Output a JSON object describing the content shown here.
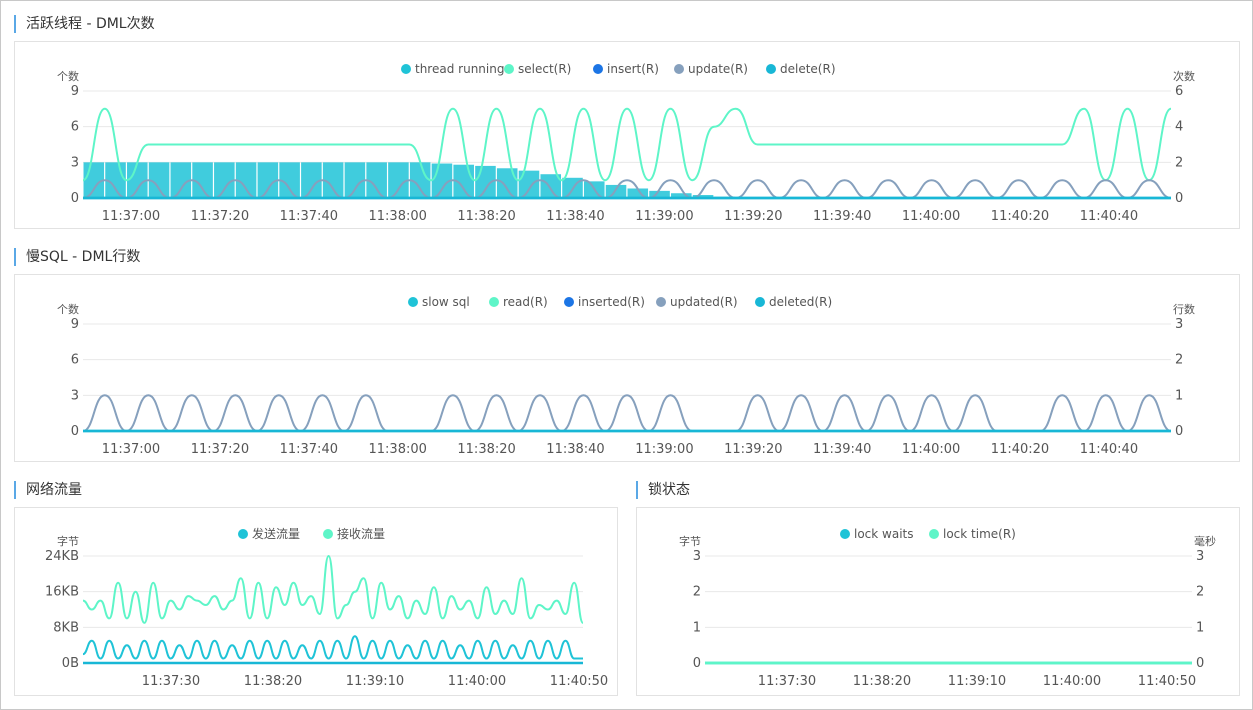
{
  "sections": {
    "active_threads": "活跃线程 - DML次数",
    "slow_sql": "慢SQL - DML行数",
    "network": "网络流量",
    "lock": "锁状态"
  },
  "colors": {
    "cyan": "#1fc3d7",
    "mint": "#5ef5c8",
    "blue": "#1c75e5",
    "slate": "#86a0bd",
    "teal": "#18b7d6",
    "grid": "#e8e8e8",
    "axis": "#18b7d6",
    "section_marker": "#5aa8e6"
  },
  "chart_data": [
    {
      "id": "active_threads",
      "type": "bar",
      "title": "",
      "y_left_label": "个数",
      "y_right_label": "次数",
      "y_left_ticks": [
        "9",
        "6",
        "3",
        "0"
      ],
      "y_right_ticks": [
        "6",
        "4",
        "2",
        "0"
      ],
      "ylim_left": [
        0,
        9
      ],
      "ylim_right": [
        0,
        6
      ],
      "x_ticks": [
        "11:37:00",
        "11:37:20",
        "11:37:40",
        "11:38:00",
        "11:38:20",
        "11:38:40",
        "11:39:00",
        "11:39:20",
        "11:39:40",
        "11:40:00",
        "11:40:20",
        "11:40:40"
      ],
      "legend_placement": "top-center",
      "legend": [
        {
          "name": "thread running",
          "color": "#1fc3d7"
        },
        {
          "name": "select(R)",
          "color": "#5ef5c8"
        },
        {
          "name": "insert(R)",
          "color": "#1c75e5"
        },
        {
          "name": "update(R)",
          "color": "#86a0bd"
        },
        {
          "name": "delete(R)",
          "color": "#18b7d6"
        }
      ],
      "series": [
        {
          "name": "thread running",
          "type": "bar",
          "axis": "left",
          "values": [
            3,
            3,
            3,
            3,
            3,
            3,
            3,
            3,
            3,
            3,
            3,
            3,
            3,
            3,
            3,
            3,
            2.9,
            2.8,
            2.7,
            2.5,
            2.3,
            2.0,
            1.7,
            1.4,
            1.1,
            0.8,
            0.6,
            0.4,
            0.25,
            0.1,
            0,
            0,
            0,
            0,
            0,
            0,
            0,
            0,
            0,
            0,
            0,
            0,
            0,
            0,
            0,
            0,
            0,
            0,
            0,
            0
          ]
        },
        {
          "name": "select(R)",
          "type": "line",
          "axis": "right",
          "x": [
            0,
            1,
            2,
            3,
            4,
            5,
            6,
            7,
            8,
            9,
            10,
            11,
            12,
            13,
            14,
            15,
            16,
            17,
            18,
            19,
            20,
            21,
            22,
            23,
            24,
            25,
            26,
            27,
            28,
            29,
            30,
            31,
            32,
            33,
            34,
            35,
            36,
            37,
            38,
            39,
            40,
            41,
            42,
            43,
            44,
            45,
            46,
            47,
            48,
            49,
            50
          ],
          "values": [
            1,
            5,
            1,
            3,
            3,
            3,
            3,
            3,
            3,
            3,
            3,
            3,
            3,
            3,
            3,
            3,
            1,
            5,
            1,
            5,
            1,
            5,
            1,
            5,
            1,
            5,
            1,
            5,
            1,
            4,
            5,
            3,
            3,
            3,
            3,
            3,
            3,
            3,
            3,
            3,
            3,
            3,
            3,
            3,
            3,
            3,
            5,
            1,
            5,
            1,
            5
          ]
        },
        {
          "name": "update(R)",
          "type": "line",
          "axis": "right",
          "values": [
            0,
            1,
            0,
            1,
            0,
            1,
            0,
            1,
            0,
            1,
            0,
            1,
            0,
            1,
            0,
            1,
            0,
            1,
            0,
            1,
            0,
            1,
            0,
            1,
            0,
            1,
            0,
            1,
            0,
            1,
            0,
            1,
            0,
            1,
            0,
            1,
            0,
            1,
            0,
            1,
            0,
            1,
            0,
            1,
            0,
            1,
            0,
            1,
            0,
            1,
            0
          ]
        },
        {
          "name": "delete(R)",
          "type": "line",
          "axis": "right",
          "values": [
            0,
            0
          ]
        }
      ]
    },
    {
      "id": "slow_sql",
      "type": "line",
      "title": "",
      "y_left_label": "个数",
      "y_right_label": "行数",
      "y_left_ticks": [
        "9",
        "6",
        "3",
        "0"
      ],
      "y_right_ticks": [
        "3",
        "2",
        "1",
        "0"
      ],
      "ylim_left": [
        0,
        9
      ],
      "ylim_right": [
        0,
        3
      ],
      "x_ticks": [
        "11:37:00",
        "11:37:20",
        "11:37:40",
        "11:38:00",
        "11:38:20",
        "11:38:40",
        "11:39:00",
        "11:39:20",
        "11:39:40",
        "11:40:00",
        "11:40:20",
        "11:40:40"
      ],
      "legend_placement": "top-center",
      "legend": [
        {
          "name": "slow sql",
          "color": "#1fc3d7"
        },
        {
          "name": "read(R)",
          "color": "#5ef5c8"
        },
        {
          "name": "inserted(R)",
          "color": "#1c75e5"
        },
        {
          "name": "updated(R)",
          "color": "#86a0bd"
        },
        {
          "name": "deleted(R)",
          "color": "#18b7d6"
        }
      ],
      "series": [
        {
          "name": "updated(R)",
          "type": "line",
          "axis": "right",
          "values": [
            0,
            1,
            0,
            1,
            0,
            1,
            0,
            1,
            0,
            1,
            0,
            1,
            0,
            1,
            0,
            0,
            0,
            1,
            0,
            1,
            0,
            1,
            0,
            1,
            0,
            1,
            0,
            1,
            0,
            0,
            0,
            1,
            0,
            1,
            0,
            1,
            0,
            1,
            0,
            1,
            0,
            1,
            0,
            0,
            0,
            1,
            0,
            1,
            0,
            1,
            0
          ]
        },
        {
          "name": "slow sql",
          "type": "line",
          "axis": "left",
          "values": [
            0,
            0
          ]
        }
      ]
    },
    {
      "id": "network",
      "type": "line",
      "title": "",
      "y_left_label": "字节",
      "y_left_ticks": [
        "24KB",
        "16KB",
        "8KB",
        "0B"
      ],
      "ylim": [
        0,
        24
      ],
      "y_unit": "KB",
      "x_ticks": [
        "11:37:30",
        "11:38:20",
        "11:39:10",
        "11:40:00",
        "11:40:50"
      ],
      "legend_placement": "top-center",
      "legend": [
        {
          "name": "发送流量",
          "color": "#1fc3d7"
        },
        {
          "name": "接收流量",
          "color": "#5ef5c8"
        }
      ],
      "series": [
        {
          "name": "接收流量",
          "type": "line",
          "values": [
            14,
            12,
            14,
            10,
            18,
            10,
            16,
            9,
            18,
            10,
            14,
            12,
            15,
            14,
            13,
            15,
            12,
            14,
            19,
            10,
            18,
            10,
            17,
            13,
            18,
            13,
            15,
            11,
            24,
            10,
            13,
            16,
            19,
            10,
            18,
            12,
            15,
            10,
            14,
            11,
            17,
            10,
            15,
            12,
            14,
            10,
            17,
            11,
            14,
            11,
            19,
            10,
            13,
            12,
            14,
            11,
            18,
            9
          ]
        },
        {
          "name": "发送流量",
          "type": "line",
          "values": [
            2,
            5,
            1,
            5,
            1,
            4,
            1,
            5,
            1,
            5,
            1,
            4,
            1,
            5,
            1,
            5,
            1,
            4,
            1,
            5,
            1,
            5,
            1,
            5,
            1,
            4,
            1,
            5,
            1,
            5,
            1,
            6,
            1,
            5,
            1,
            5,
            1,
            4,
            1,
            5,
            1,
            5,
            1,
            4,
            1,
            5,
            1,
            5,
            1,
            4,
            1,
            5,
            1,
            5,
            1,
            5,
            1,
            1
          ]
        }
      ]
    },
    {
      "id": "lock",
      "type": "line",
      "title": "",
      "y_left_label": "字节",
      "y_right_label": "毫秒",
      "y_left_ticks": [
        "3",
        "2",
        "1",
        "0"
      ],
      "y_right_ticks": [
        "3",
        "2",
        "1",
        "0"
      ],
      "ylim_left": [
        0,
        3
      ],
      "ylim_right": [
        0,
        3
      ],
      "x_ticks": [
        "11:37:30",
        "11:38:20",
        "11:39:10",
        "11:40:00",
        "11:40:50"
      ],
      "legend_placement": "top-center",
      "legend": [
        {
          "name": "lock waits",
          "color": "#1fc3d7"
        },
        {
          "name": "lock time(R)",
          "color": "#5ef5c8"
        }
      ],
      "series": [
        {
          "name": "lock waits",
          "type": "line",
          "axis": "left",
          "values": [
            0,
            0
          ]
        },
        {
          "name": "lock time(R)",
          "type": "line",
          "axis": "right",
          "values": [
            0,
            0
          ]
        }
      ]
    }
  ]
}
